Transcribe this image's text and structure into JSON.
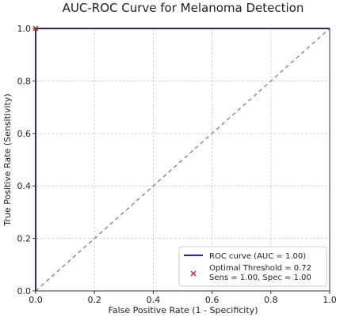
{
  "chart_data": {
    "type": "line",
    "title": "AUC-ROC Curve for Melanoma Detection",
    "xlabel": "False Positive Rate (1 - Specificity)",
    "ylabel": "True Positive Rate (Sensitivity)",
    "xlim": [
      0,
      1
    ],
    "ylim": [
      0,
      1
    ],
    "xticks": [
      "0.0",
      "0.2",
      "0.4",
      "0.6",
      "0.8",
      "1.0"
    ],
    "yticks": [
      "0.0",
      "0.2",
      "0.4",
      "0.6",
      "0.8",
      "1.0"
    ],
    "grid": true,
    "legend_position": "bottom-right",
    "series": [
      {
        "name": "ROC curve (AUC = 1.00)",
        "color": "#1f1fd6",
        "style": "solid",
        "x": [
          0.0,
          0.0,
          1.0
        ],
        "y": [
          0.0,
          1.0,
          1.0
        ]
      },
      {
        "color": "#808080",
        "style": "dashed",
        "x": [
          0.0,
          1.0
        ],
        "y": [
          0.0,
          1.0
        ]
      }
    ],
    "points": [
      {
        "name": "Optimal Threshold = 0.72",
        "detail": "Sens = 1.00, Spec = 1.00",
        "color": "#d62728",
        "marker": "x",
        "x": 0.0,
        "y": 1.0
      }
    ]
  }
}
